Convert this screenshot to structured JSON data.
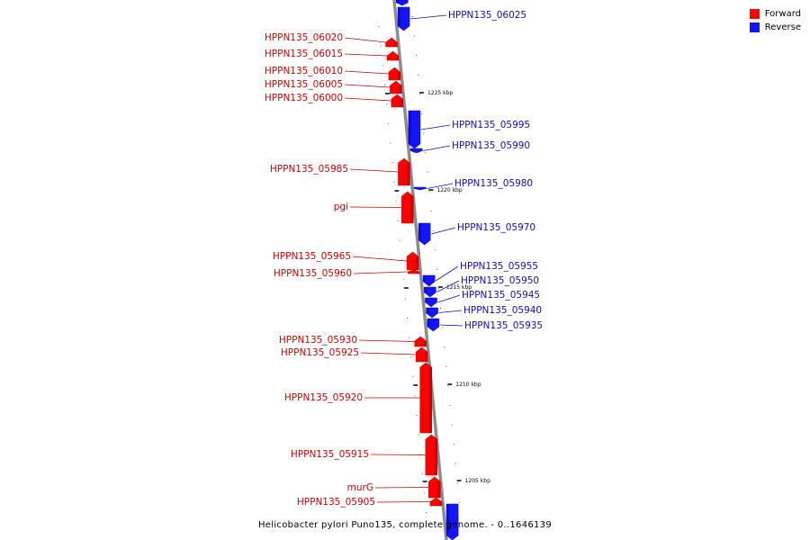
{
  "colors": {
    "forward": "#ff0000",
    "reverse": "#1414ff",
    "forward_label": "#c80000",
    "reverse_label": "#1010a8",
    "backbone": "#8c8c8c"
  },
  "legend": [
    {
      "label": "Forward",
      "color": "#ff0000"
    },
    {
      "label": "Reverse",
      "color": "#1414ff"
    }
  ],
  "caption": "Helicobacter pylori Puno135, complete genome. - 0..1646139",
  "ticks": [
    "1225 kbp",
    "1220 kbp",
    "1215 kbp",
    "1210 kbp",
    "1205 kbp"
  ],
  "forward_genes": [
    "HPPN135_06020",
    "HPPN135_06015",
    "HPPN135_06010",
    "HPPN135_06005",
    "HPPN135_06000",
    "HPPN135_05985",
    "pgi",
    "HPPN135_05965",
    "HPPN135_05960",
    "HPPN135_05930",
    "HPPN135_05925",
    "HPPN135_05920",
    "HPPN135_05915",
    "murG",
    "HPPN135_05905"
  ],
  "reverse_genes": [
    "HPPN135_06025",
    "HPPN135_05995",
    "HPPN135_05990",
    "HPPN135_05980",
    "HPPN135_05970",
    "HPPN135_05955",
    "HPPN135_05950",
    "HPPN135_05945",
    "HPPN135_05940",
    "HPPN135_05935"
  ]
}
